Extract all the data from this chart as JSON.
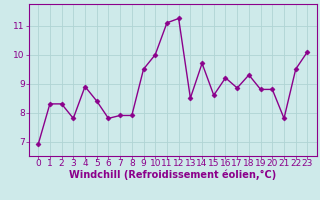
{
  "x": [
    0,
    1,
    2,
    3,
    4,
    5,
    6,
    7,
    8,
    9,
    10,
    11,
    12,
    13,
    14,
    15,
    16,
    17,
    18,
    19,
    20,
    21,
    22,
    23
  ],
  "y": [
    6.9,
    8.3,
    8.3,
    7.8,
    8.9,
    8.4,
    7.8,
    7.9,
    7.9,
    9.5,
    10.0,
    11.1,
    11.25,
    8.5,
    9.7,
    8.6,
    9.2,
    8.85,
    9.3,
    8.8,
    8.8,
    7.8,
    9.5,
    10.1
  ],
  "line_color": "#8b008b",
  "marker": "D",
  "marker_size": 2.5,
  "line_width": 1.0,
  "bg_color": "#ceeaea",
  "grid_color": "#b0d4d4",
  "xlabel": "Windchill (Refroidissement éolien,°C)",
  "xlabel_color": "#8b008b",
  "tick_color": "#8b008b",
  "ylim": [
    6.5,
    11.75
  ],
  "yticks": [
    7,
    8,
    9,
    10,
    11
  ],
  "xticks": [
    0,
    1,
    2,
    3,
    4,
    5,
    6,
    7,
    8,
    9,
    10,
    11,
    12,
    13,
    14,
    15,
    16,
    17,
    18,
    19,
    20,
    21,
    22,
    23
  ],
  "font_size_xlabel": 7.0,
  "font_size_ticks": 6.5
}
